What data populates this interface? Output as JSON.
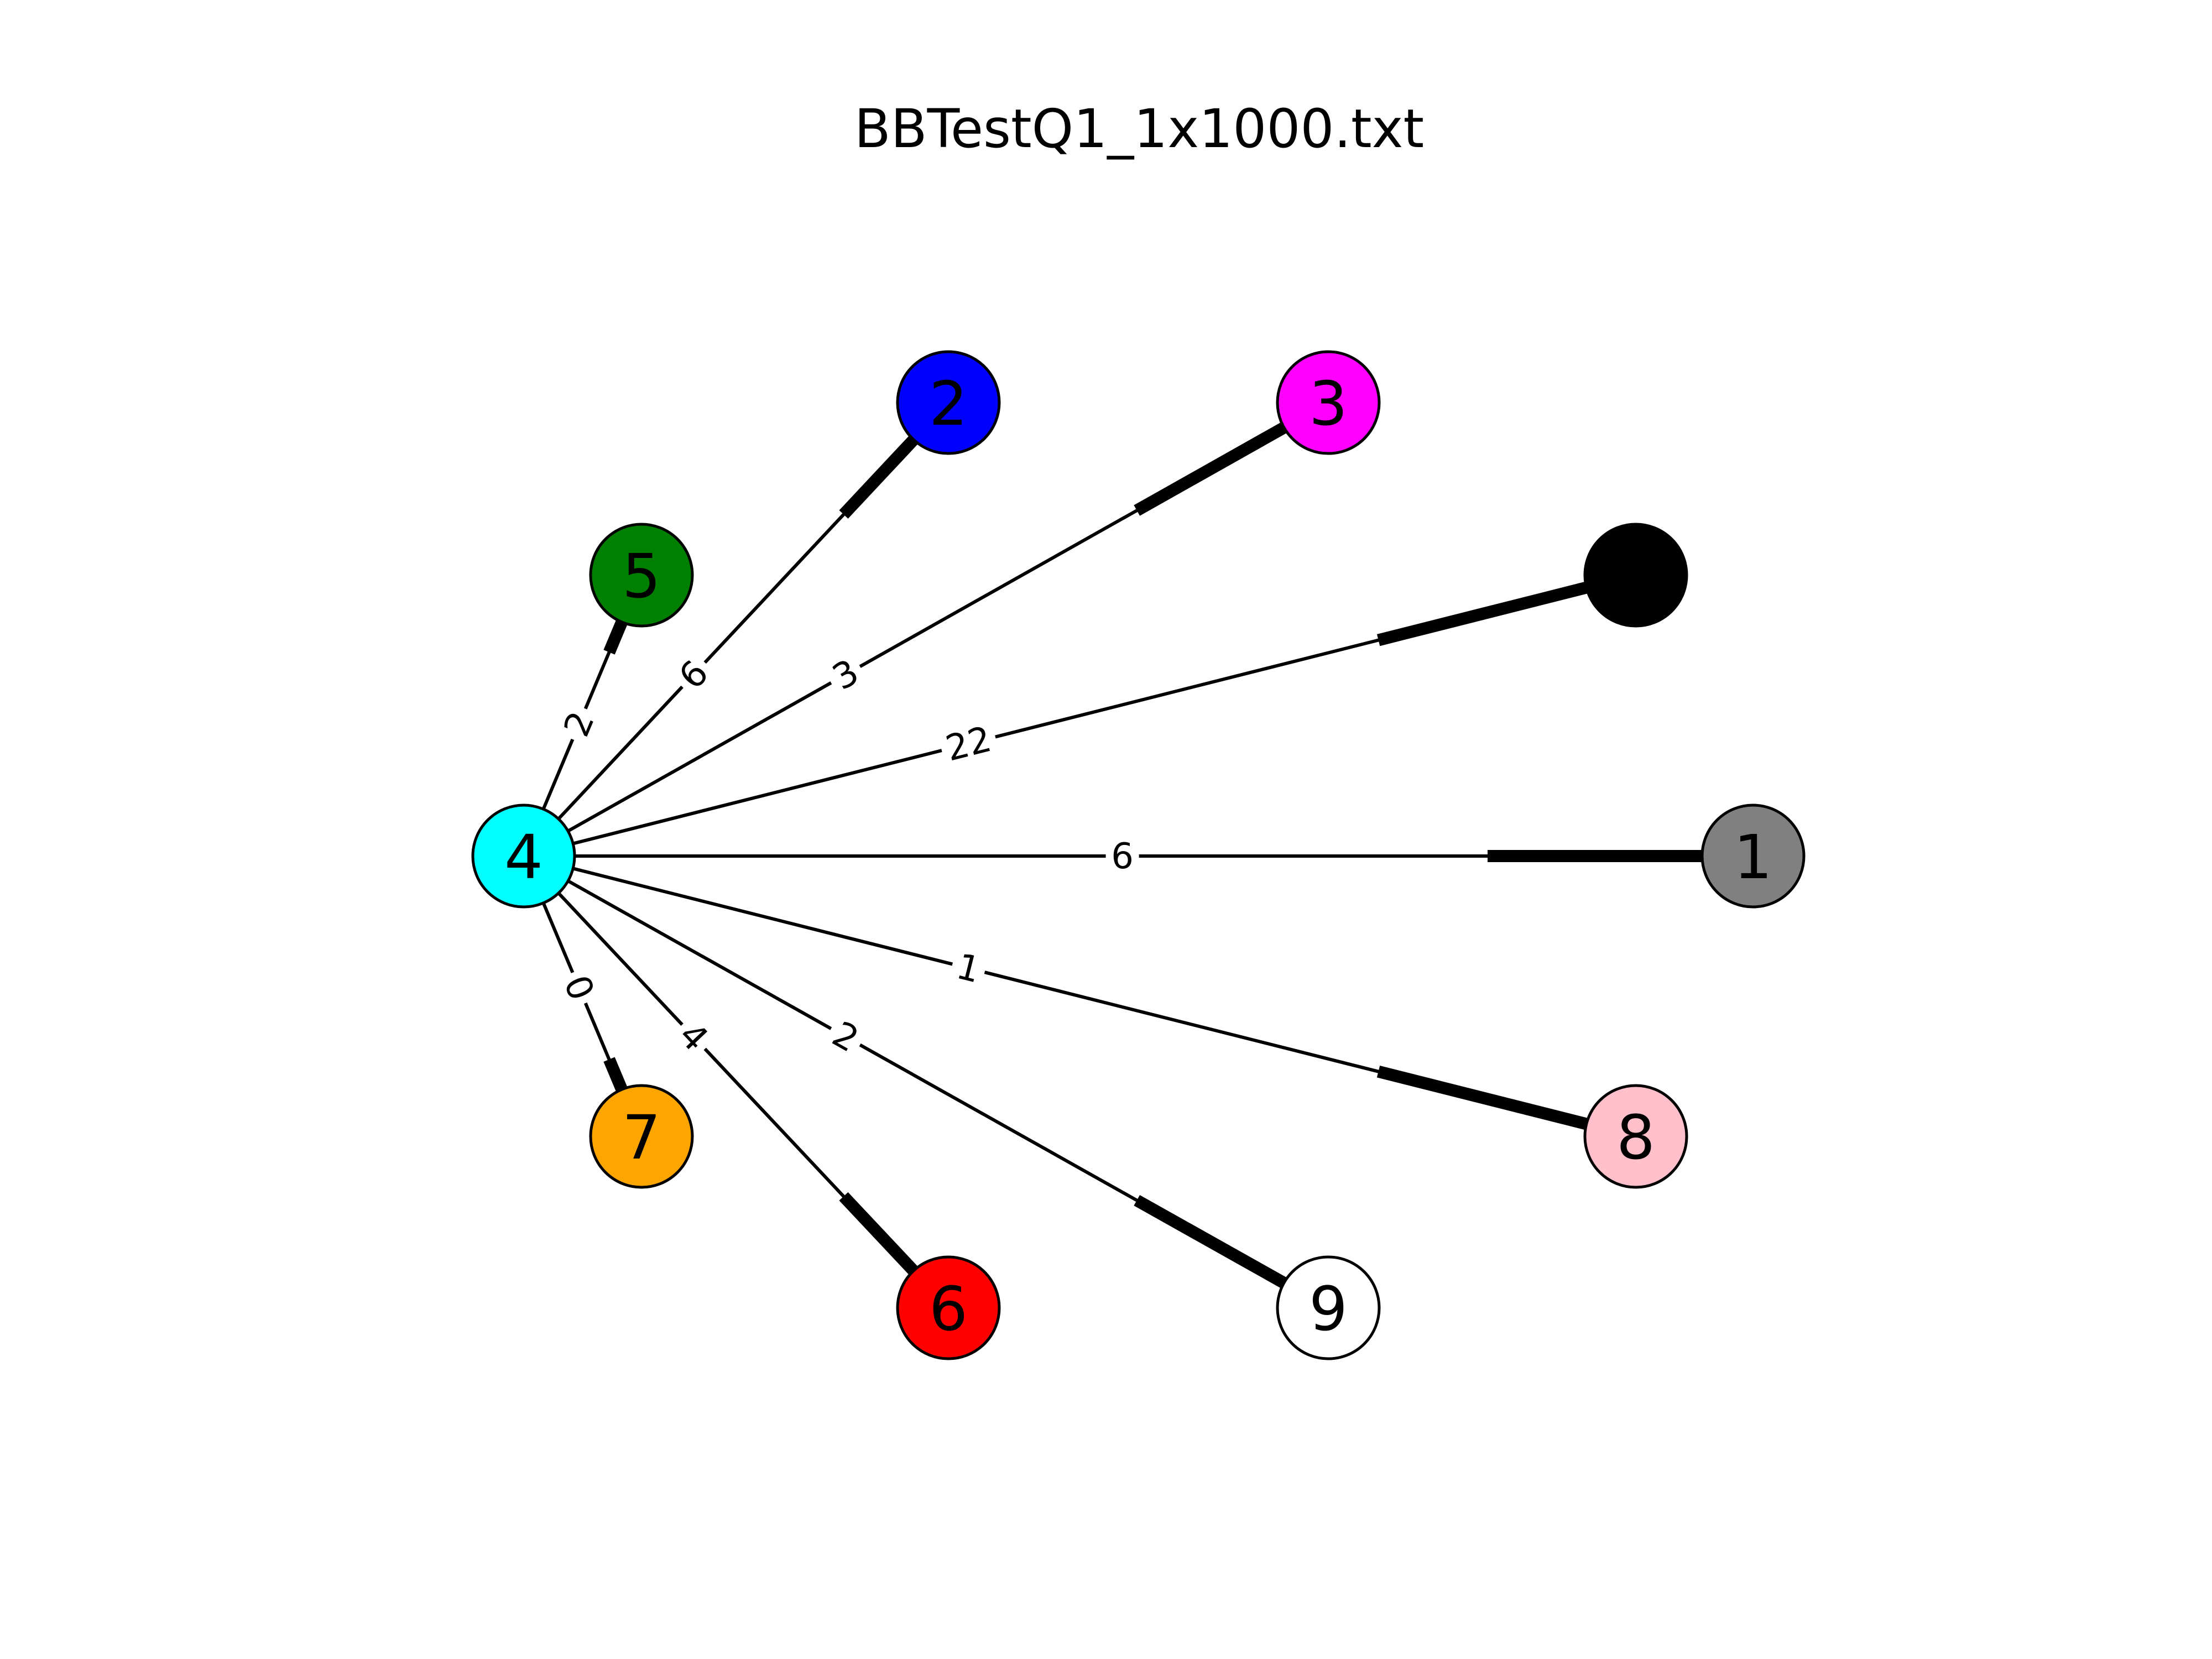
{
  "title": "BBTestQ1_1x1000.txt",
  "hub": {
    "id": "4",
    "label": "4",
    "color": "#00ffff"
  },
  "nodes": [
    {
      "id": "0",
      "label": "",
      "color": "#000000"
    },
    {
      "id": "1",
      "label": "1",
      "color": "#808080"
    },
    {
      "id": "2",
      "label": "2",
      "color": "#0000ff"
    },
    {
      "id": "3",
      "label": "3",
      "color": "#ff00ff"
    },
    {
      "id": "5",
      "label": "5",
      "color": "#008000"
    },
    {
      "id": "6",
      "label": "6",
      "color": "#ff0000"
    },
    {
      "id": "7",
      "label": "7",
      "color": "#ffa500"
    },
    {
      "id": "8",
      "label": "8",
      "color": "#ffc0cb"
    },
    {
      "id": "9",
      "label": "9",
      "color": "#ffffff"
    }
  ],
  "edges": [
    {
      "from": "4",
      "to": "5",
      "label": "2"
    },
    {
      "from": "4",
      "to": "2",
      "label": "6"
    },
    {
      "from": "4",
      "to": "3",
      "label": "3"
    },
    {
      "from": "4",
      "to": "0",
      "label": "22"
    },
    {
      "from": "4",
      "to": "1",
      "label": "6"
    },
    {
      "from": "4",
      "to": "8",
      "label": "1"
    },
    {
      "from": "4",
      "to": "9",
      "label": "2"
    },
    {
      "from": "4",
      "to": "6",
      "label": "4"
    },
    {
      "from": "4",
      "to": "7",
      "label": "0"
    }
  ]
}
